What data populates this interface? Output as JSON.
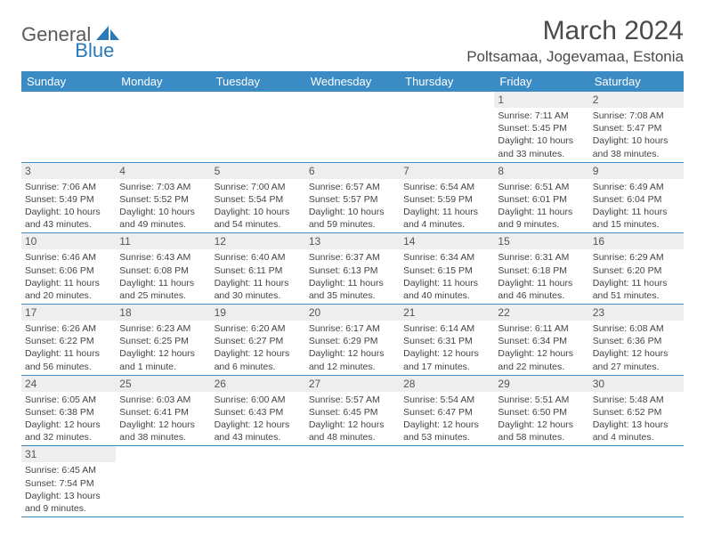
{
  "logo": {
    "text1": "General",
    "text2": "Blue"
  },
  "title": "March 2024",
  "location": "Poltsamaa, Jogevamaa, Estonia",
  "colors": {
    "header_bg": "#3b8bc4",
    "header_fg": "#ffffff",
    "daynum_bg": "#eeeeee",
    "border": "#3b8bc4",
    "logo_blue": "#2a7ab8",
    "logo_gray": "#5a5a5a"
  },
  "weekdays": [
    "Sunday",
    "Monday",
    "Tuesday",
    "Wednesday",
    "Thursday",
    "Friday",
    "Saturday"
  ],
  "cells": [
    null,
    null,
    null,
    null,
    null,
    {
      "n": "1",
      "sr": "7:11 AM",
      "ss": "5:45 PM",
      "dl": "10 hours and 33 minutes."
    },
    {
      "n": "2",
      "sr": "7:08 AM",
      "ss": "5:47 PM",
      "dl": "10 hours and 38 minutes."
    },
    {
      "n": "3",
      "sr": "7:06 AM",
      "ss": "5:49 PM",
      "dl": "10 hours and 43 minutes."
    },
    {
      "n": "4",
      "sr": "7:03 AM",
      "ss": "5:52 PM",
      "dl": "10 hours and 49 minutes."
    },
    {
      "n": "5",
      "sr": "7:00 AM",
      "ss": "5:54 PM",
      "dl": "10 hours and 54 minutes."
    },
    {
      "n": "6",
      "sr": "6:57 AM",
      "ss": "5:57 PM",
      "dl": "10 hours and 59 minutes."
    },
    {
      "n": "7",
      "sr": "6:54 AM",
      "ss": "5:59 PM",
      "dl": "11 hours and 4 minutes."
    },
    {
      "n": "8",
      "sr": "6:51 AM",
      "ss": "6:01 PM",
      "dl": "11 hours and 9 minutes."
    },
    {
      "n": "9",
      "sr": "6:49 AM",
      "ss": "6:04 PM",
      "dl": "11 hours and 15 minutes."
    },
    {
      "n": "10",
      "sr": "6:46 AM",
      "ss": "6:06 PM",
      "dl": "11 hours and 20 minutes."
    },
    {
      "n": "11",
      "sr": "6:43 AM",
      "ss": "6:08 PM",
      "dl": "11 hours and 25 minutes."
    },
    {
      "n": "12",
      "sr": "6:40 AM",
      "ss": "6:11 PM",
      "dl": "11 hours and 30 minutes."
    },
    {
      "n": "13",
      "sr": "6:37 AM",
      "ss": "6:13 PM",
      "dl": "11 hours and 35 minutes."
    },
    {
      "n": "14",
      "sr": "6:34 AM",
      "ss": "6:15 PM",
      "dl": "11 hours and 40 minutes."
    },
    {
      "n": "15",
      "sr": "6:31 AM",
      "ss": "6:18 PM",
      "dl": "11 hours and 46 minutes."
    },
    {
      "n": "16",
      "sr": "6:29 AM",
      "ss": "6:20 PM",
      "dl": "11 hours and 51 minutes."
    },
    {
      "n": "17",
      "sr": "6:26 AM",
      "ss": "6:22 PM",
      "dl": "11 hours and 56 minutes."
    },
    {
      "n": "18",
      "sr": "6:23 AM",
      "ss": "6:25 PM",
      "dl": "12 hours and 1 minute."
    },
    {
      "n": "19",
      "sr": "6:20 AM",
      "ss": "6:27 PM",
      "dl": "12 hours and 6 minutes."
    },
    {
      "n": "20",
      "sr": "6:17 AM",
      "ss": "6:29 PM",
      "dl": "12 hours and 12 minutes."
    },
    {
      "n": "21",
      "sr": "6:14 AM",
      "ss": "6:31 PM",
      "dl": "12 hours and 17 minutes."
    },
    {
      "n": "22",
      "sr": "6:11 AM",
      "ss": "6:34 PM",
      "dl": "12 hours and 22 minutes."
    },
    {
      "n": "23",
      "sr": "6:08 AM",
      "ss": "6:36 PM",
      "dl": "12 hours and 27 minutes."
    },
    {
      "n": "24",
      "sr": "6:05 AM",
      "ss": "6:38 PM",
      "dl": "12 hours and 32 minutes."
    },
    {
      "n": "25",
      "sr": "6:03 AM",
      "ss": "6:41 PM",
      "dl": "12 hours and 38 minutes."
    },
    {
      "n": "26",
      "sr": "6:00 AM",
      "ss": "6:43 PM",
      "dl": "12 hours and 43 minutes."
    },
    {
      "n": "27",
      "sr": "5:57 AM",
      "ss": "6:45 PM",
      "dl": "12 hours and 48 minutes."
    },
    {
      "n": "28",
      "sr": "5:54 AM",
      "ss": "6:47 PM",
      "dl": "12 hours and 53 minutes."
    },
    {
      "n": "29",
      "sr": "5:51 AM",
      "ss": "6:50 PM",
      "dl": "12 hours and 58 minutes."
    },
    {
      "n": "30",
      "sr": "5:48 AM",
      "ss": "6:52 PM",
      "dl": "13 hours and 4 minutes."
    },
    {
      "n": "31",
      "sr": "6:45 AM",
      "ss": "7:54 PM",
      "dl": "13 hours and 9 minutes."
    },
    null,
    null,
    null,
    null,
    null,
    null
  ]
}
